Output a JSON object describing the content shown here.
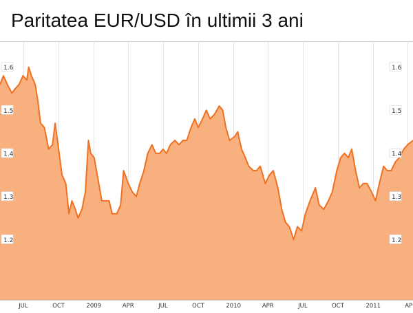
{
  "title": "Paritatea EUR/USD în ultimii 3 ani",
  "colors": {
    "line": "#f07020",
    "fill": "#f9b07f",
    "grid": "#e4e4e4",
    "axis": "#cccccc",
    "text": "#333333",
    "label_bg": "#ffffff"
  },
  "chart_data": {
    "type": "area",
    "title": "Paritatea EUR/USD în ultimii 3 ani",
    "xlabel": "",
    "ylabel": "",
    "ylim": [
      1.06,
      1.66
    ],
    "yticks_left": [
      "1.6",
      "1.5",
      "1.4",
      "1.3",
      "1.2"
    ],
    "yticks_right": [
      "1.6",
      "1.5",
      "1.4",
      "1.3",
      "1.2"
    ],
    "xlim": [
      "2008-05-01",
      "2011-04-15"
    ],
    "xticks": [
      {
        "date": "2008-07-01",
        "label": "JUL"
      },
      {
        "date": "2008-10-01",
        "label": "OCT"
      },
      {
        "date": "2009-01-01",
        "label": "2009"
      },
      {
        "date": "2009-04-01",
        "label": "APR"
      },
      {
        "date": "2009-07-01",
        "label": "JUL"
      },
      {
        "date": "2009-10-01",
        "label": "OCT"
      },
      {
        "date": "2010-01-01",
        "label": "2010"
      },
      {
        "date": "2010-04-01",
        "label": "APR"
      },
      {
        "date": "2010-07-01",
        "label": "JUL"
      },
      {
        "date": "2010-10-01",
        "label": "OCT"
      },
      {
        "date": "2011-01-01",
        "label": "2011"
      },
      {
        "date": "2011-04-01",
        "label": "AP"
      }
    ],
    "grid": true,
    "series": [
      {
        "points": [
          [
            "2008-05-01",
            1.56
          ],
          [
            "2008-05-10",
            1.58
          ],
          [
            "2008-05-20",
            1.56
          ],
          [
            "2008-06-01",
            1.54
          ],
          [
            "2008-06-10",
            1.55
          ],
          [
            "2008-06-20",
            1.56
          ],
          [
            "2008-06-30",
            1.58
          ],
          [
            "2008-07-10",
            1.57
          ],
          [
            "2008-07-15",
            1.6
          ],
          [
            "2008-07-22",
            1.58
          ],
          [
            "2008-08-01",
            1.56
          ],
          [
            "2008-08-08",
            1.52
          ],
          [
            "2008-08-15",
            1.47
          ],
          [
            "2008-08-25",
            1.46
          ],
          [
            "2008-09-05",
            1.41
          ],
          [
            "2008-09-15",
            1.42
          ],
          [
            "2008-09-22",
            1.47
          ],
          [
            "2008-10-01",
            1.41
          ],
          [
            "2008-10-10",
            1.35
          ],
          [
            "2008-10-20",
            1.33
          ],
          [
            "2008-10-28",
            1.26
          ],
          [
            "2008-11-05",
            1.29
          ],
          [
            "2008-11-14",
            1.27
          ],
          [
            "2008-11-21",
            1.25
          ],
          [
            "2008-12-01",
            1.27
          ],
          [
            "2008-12-10",
            1.31
          ],
          [
            "2008-12-18",
            1.43
          ],
          [
            "2008-12-24",
            1.4
          ],
          [
            "2009-01-02",
            1.39
          ],
          [
            "2009-01-12",
            1.34
          ],
          [
            "2009-01-22",
            1.29
          ],
          [
            "2009-02-01",
            1.29
          ],
          [
            "2009-02-10",
            1.29
          ],
          [
            "2009-02-18",
            1.26
          ],
          [
            "2009-03-02",
            1.26
          ],
          [
            "2009-03-12",
            1.28
          ],
          [
            "2009-03-20",
            1.36
          ],
          [
            "2009-04-01",
            1.33
          ],
          [
            "2009-04-12",
            1.31
          ],
          [
            "2009-04-22",
            1.3
          ],
          [
            "2009-05-01",
            1.33
          ],
          [
            "2009-05-12",
            1.36
          ],
          [
            "2009-05-22",
            1.4
          ],
          [
            "2009-06-02",
            1.42
          ],
          [
            "2009-06-12",
            1.4
          ],
          [
            "2009-06-22",
            1.4
          ],
          [
            "2009-07-01",
            1.41
          ],
          [
            "2009-07-10",
            1.4
          ],
          [
            "2009-07-20",
            1.42
          ],
          [
            "2009-08-01",
            1.43
          ],
          [
            "2009-08-12",
            1.42
          ],
          [
            "2009-08-22",
            1.43
          ],
          [
            "2009-09-01",
            1.43
          ],
          [
            "2009-09-12",
            1.46
          ],
          [
            "2009-09-22",
            1.48
          ],
          [
            "2009-10-01",
            1.46
          ],
          [
            "2009-10-12",
            1.48
          ],
          [
            "2009-10-22",
            1.5
          ],
          [
            "2009-11-01",
            1.48
          ],
          [
            "2009-11-12",
            1.49
          ],
          [
            "2009-11-25",
            1.51
          ],
          [
            "2009-12-04",
            1.5
          ],
          [
            "2009-12-12",
            1.46
          ],
          [
            "2009-12-22",
            1.43
          ],
          [
            "2010-01-05",
            1.44
          ],
          [
            "2010-01-12",
            1.45
          ],
          [
            "2010-01-22",
            1.41
          ],
          [
            "2010-02-01",
            1.39
          ],
          [
            "2010-02-10",
            1.37
          ],
          [
            "2010-02-22",
            1.36
          ],
          [
            "2010-03-02",
            1.36
          ],
          [
            "2010-03-12",
            1.37
          ],
          [
            "2010-03-25",
            1.33
          ],
          [
            "2010-04-05",
            1.35
          ],
          [
            "2010-04-15",
            1.36
          ],
          [
            "2010-04-27",
            1.32
          ],
          [
            "2010-05-07",
            1.27
          ],
          [
            "2010-05-17",
            1.24
          ],
          [
            "2010-05-27",
            1.23
          ],
          [
            "2010-06-07",
            1.2
          ],
          [
            "2010-06-17",
            1.23
          ],
          [
            "2010-06-28",
            1.22
          ],
          [
            "2010-07-08",
            1.26
          ],
          [
            "2010-07-20",
            1.29
          ],
          [
            "2010-08-03",
            1.32
          ],
          [
            "2010-08-13",
            1.28
          ],
          [
            "2010-08-25",
            1.27
          ],
          [
            "2010-09-06",
            1.29
          ],
          [
            "2010-09-16",
            1.31
          ],
          [
            "2010-09-28",
            1.36
          ],
          [
            "2010-10-08",
            1.39
          ],
          [
            "2010-10-18",
            1.4
          ],
          [
            "2010-10-28",
            1.39
          ],
          [
            "2010-11-06",
            1.41
          ],
          [
            "2010-11-16",
            1.36
          ],
          [
            "2010-11-26",
            1.32
          ],
          [
            "2010-12-06",
            1.33
          ],
          [
            "2010-12-16",
            1.33
          ],
          [
            "2010-12-28",
            1.31
          ],
          [
            "2011-01-07",
            1.29
          ],
          [
            "2011-01-17",
            1.33
          ],
          [
            "2011-01-28",
            1.37
          ],
          [
            "2011-02-07",
            1.36
          ],
          [
            "2011-02-17",
            1.36
          ],
          [
            "2011-02-28",
            1.38
          ],
          [
            "2011-03-10",
            1.39
          ],
          [
            "2011-03-22",
            1.41
          ],
          [
            "2011-04-01",
            1.42
          ],
          [
            "2011-04-15",
            1.43
          ]
        ]
      }
    ]
  }
}
